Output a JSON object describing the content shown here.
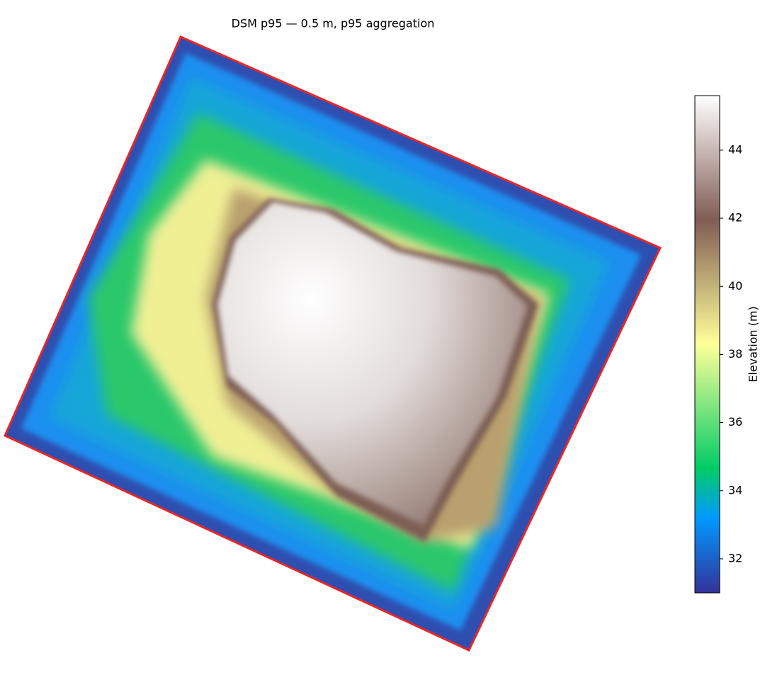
{
  "chart_data": {
    "type": "raster",
    "title": "DSM p95 — 0.5 m, p95 aggregation",
    "colorbar": {
      "label": "Elevation (m)",
      "lim": [
        31,
        45.6
      ],
      "ticks": [
        32,
        34,
        36,
        38,
        40,
        42,
        44
      ]
    }
  }
}
